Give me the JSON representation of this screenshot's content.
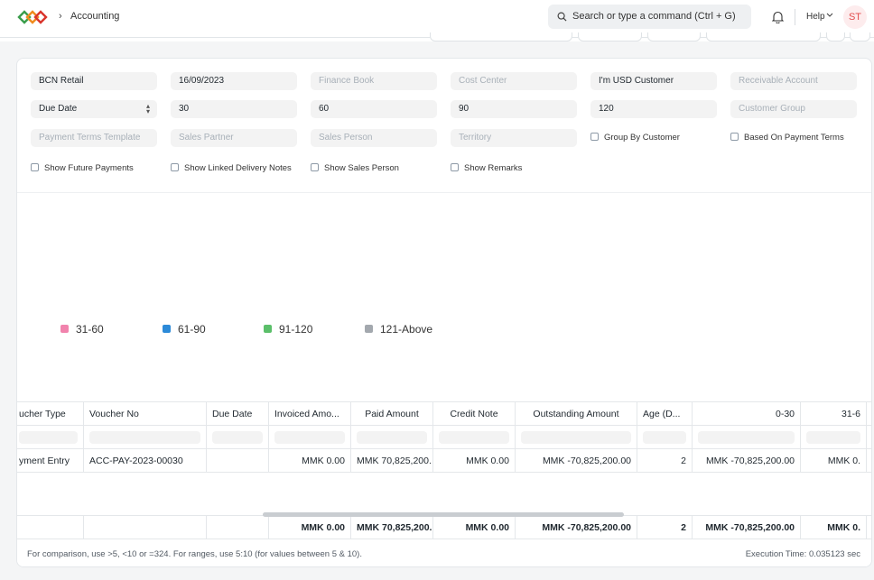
{
  "navbar": {
    "breadcrumb": "Accounting",
    "search_placeholder": "Search or type a command (Ctrl + G)",
    "help_label": "Help",
    "avatar_initials": "ST"
  },
  "filters": {
    "company": "BCN Retail",
    "report_date": "16/09/2023",
    "finance_book": "Finance Book",
    "cost_center": "Cost Center",
    "customer": "I'm USD Customer",
    "receivable_account": "Receivable Account",
    "ageing_based_on": "Due Date",
    "range1": "30",
    "range2": "60",
    "range3": "90",
    "range4": "120",
    "customer_group": "Customer Group",
    "payment_terms_template": "Payment Terms Template",
    "sales_partner": "Sales Partner",
    "sales_person": "Sales Person",
    "territory": "Territory",
    "group_by_customer": "Group By Customer",
    "based_on_payment_terms": "Based On Payment Terms",
    "show_future_payments": "Show Future Payments",
    "show_linked_delivery_notes": "Show Linked Delivery Notes",
    "show_sales_person": "Show Sales Person",
    "show_remarks": "Show Remarks"
  },
  "chart_legend": [
    {
      "label": "31-60",
      "color": "#f183ad"
    },
    {
      "label": "61-90",
      "color": "#2c8ad8"
    },
    {
      "label": "91-120",
      "color": "#5bbf6a"
    },
    {
      "label": "121-Above",
      "color": "#a3a8ae"
    }
  ],
  "table": {
    "headers": [
      "ucher Type",
      "Voucher No",
      "Due Date",
      "Invoiced Amo...",
      "Paid Amount",
      "Credit Note",
      "Outstanding Amount",
      "Age (D...",
      "0-30",
      "31-6"
    ],
    "row": [
      "yment Entry",
      "ACC-PAY-2023-00030",
      "",
      "MMK 0.00",
      "MMK 70,825,200.",
      "MMK 0.00",
      "MMK -70,825,200.00",
      "2",
      "MMK -70,825,200.00",
      "MMK 0."
    ],
    "totals": [
      "",
      "",
      "",
      "MMK 0.00",
      "MMK 70,825,200.",
      "MMK 0.00",
      "MMK -70,825,200.00",
      "2",
      "MMK -70,825,200.00",
      "MMK 0."
    ]
  },
  "footer": {
    "hint": "For comparison, use >5, <10 or =324. For ranges, use 5:10 (for values between 5 & 10).",
    "execution_time": "Execution Time: 0.035123 sec"
  },
  "colors": {
    "accent_red": "#e24c4c",
    "logo_green": "#3a9d4b",
    "logo_orange": "#f08b1d",
    "logo_red": "#d9342b"
  }
}
